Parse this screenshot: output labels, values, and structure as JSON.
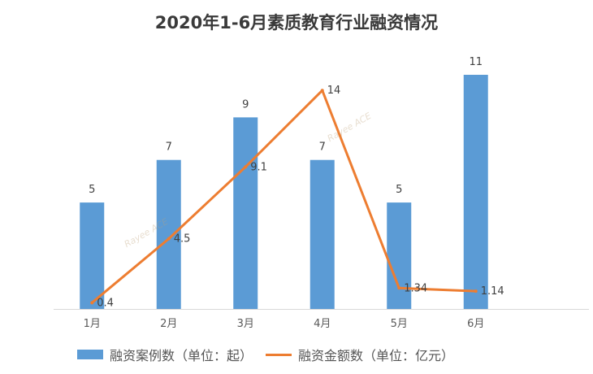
{
  "chart_data": {
    "type": "bar+line",
    "title": "2020年1-6月素质教育行业融资情况",
    "categories": [
      "1月",
      "2月",
      "3月",
      "4月",
      "5月",
      "6月"
    ],
    "series": [
      {
        "name": "融资案例数（单位：起）",
        "type": "bar",
        "color": "#5B9BD5",
        "values": [
          5,
          7,
          9,
          7,
          5,
          11
        ]
      },
      {
        "name": "融资金额数（单位：亿元）",
        "type": "line",
        "color": "#ED7D31",
        "values": [
          0.4,
          4.5,
          9.1,
          14,
          1.34,
          1.14
        ]
      }
    ],
    "ylim": [
      0,
      11
    ],
    "y2lim": [
      0,
      15
    ],
    "grid": false,
    "legend": "bottom",
    "data_labels": true
  },
  "watermark": "Rayee ACE"
}
